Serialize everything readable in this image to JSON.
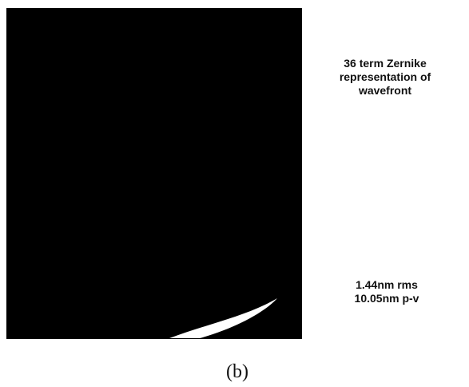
{
  "figure": {
    "caption_lines": [
      "36 term Zernike",
      "representation of",
      "wavefront"
    ],
    "stats_lines": [
      "1.44nm rms",
      "10.05nm p-v"
    ],
    "label": "(b)"
  }
}
